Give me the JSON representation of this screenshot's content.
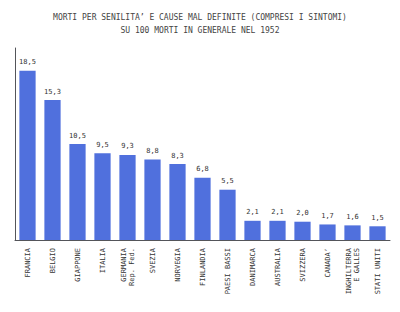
{
  "chart_data": {
    "type": "bar",
    "title": "MORTI PER SENILITA’ E CAUSE MAL DEFINITE (COMPRESI I SINTOMI)\nSU 100 MORTI IN GENERALE NEL 1952",
    "categories": [
      "FRANCIA",
      "BELGIO",
      "GIAPPONE",
      "ITALIA",
      "GERMANIA\nRep. Fed.",
      "SVEZIA",
      "NORVEGIA",
      "FINLANDIA",
      "PAESI BASSI",
      "DANIMARCA",
      "AUSTRALIA",
      "SVIZZERA",
      "CANADA’",
      "INGHILTERRA\nE GALLES",
      "STATI UNITI"
    ],
    "values": [
      18.5,
      15.3,
      10.5,
      9.5,
      9.3,
      8.8,
      8.3,
      6.8,
      5.5,
      2.1,
      2.1,
      2.0,
      1.7,
      1.6,
      1.5
    ],
    "value_labels": [
      "18,5",
      "15,3",
      "10,5",
      "9,5",
      "9,3",
      "8,8",
      "8,3",
      "6,8",
      "5,5",
      "2,1",
      "2,1",
      "2,0",
      "1,7",
      "1,6",
      "1,5"
    ],
    "ylim": [
      0,
      21
    ],
    "data_labels": true,
    "tick_labels": "x",
    "grid": false
  }
}
